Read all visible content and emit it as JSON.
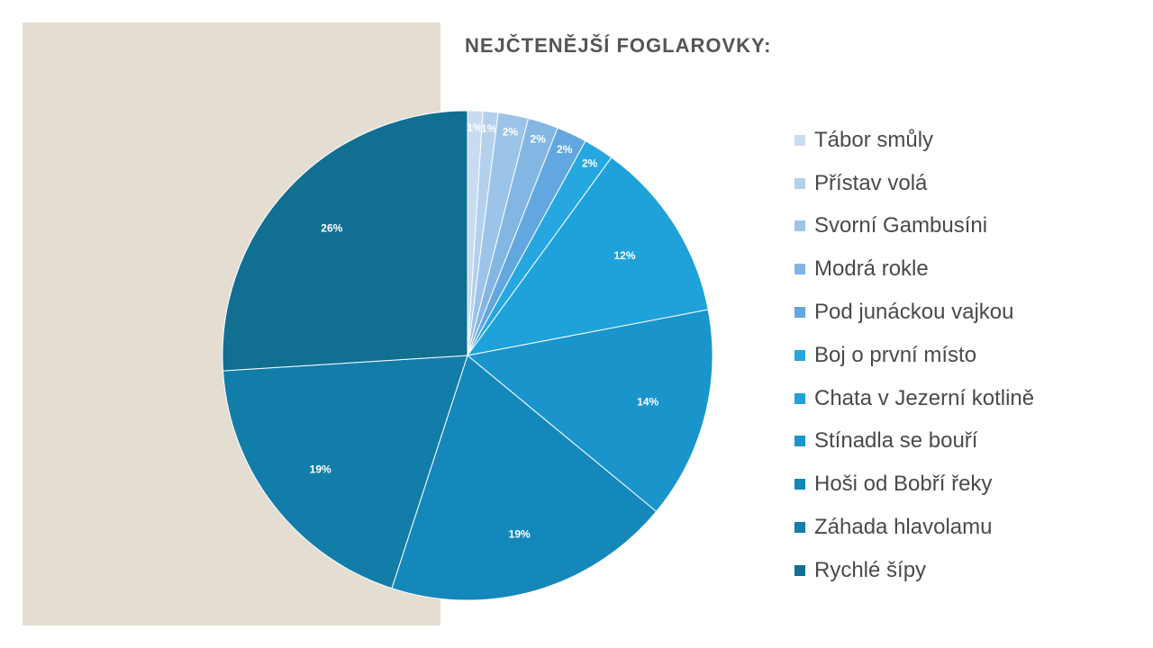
{
  "title": "NEJČTENĚJŠÍ FOGLAROVKY:",
  "chart_data": {
    "type": "pie",
    "title": "NEJČTENĚJŠÍ FOGLAROVKY:",
    "legend_position": "right",
    "slices": [
      {
        "name": "Tábor smůly",
        "value": 1,
        "label": "1%",
        "color": "#c9dbef"
      },
      {
        "name": "Přístav volá",
        "value": 1,
        "label": "1%",
        "color": "#b3d0ec"
      },
      {
        "name": "Svorní Gambusíni",
        "value": 2,
        "label": "2%",
        "color": "#9cc4e8"
      },
      {
        "name": "Modrá rokle",
        "value": 2,
        "label": "2%",
        "color": "#83b6e3"
      },
      {
        "name": "Pod junáckou vajkou",
        "value": 2,
        "label": "2%",
        "color": "#62a7df"
      },
      {
        "name": "Boj o první místo",
        "value": 2,
        "label": "2%",
        "color": "#27a7e0"
      },
      {
        "name": "Chata v Jezerní kotlině",
        "value": 12,
        "label": "12%",
        "color": "#1fa1d9"
      },
      {
        "name": "Stínadla se bouří",
        "value": 14,
        "label": "14%",
        "color": "#1995cc"
      },
      {
        "name": "Hoši od Bobří řeky",
        "value": 19,
        "label": "19%",
        "color": "#1588bb"
      },
      {
        "name": "Záhada hlavolamu",
        "value": 19,
        "label": "19%",
        "color": "#137daa"
      },
      {
        "name": "Rychlé šípy",
        "value": 26,
        "label": "26%",
        "color": "#116f92"
      }
    ]
  }
}
